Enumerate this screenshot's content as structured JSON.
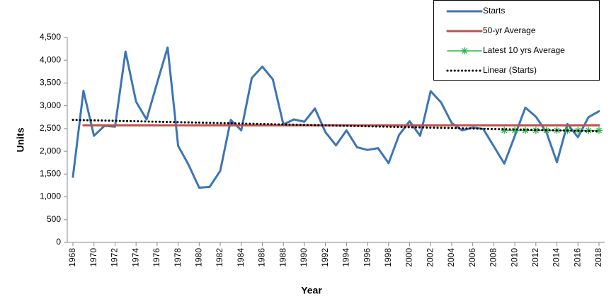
{
  "chart_data": {
    "type": "line",
    "x_label": "Year",
    "y_label": "Units",
    "x": [
      1968,
      1969,
      1970,
      1971,
      1972,
      1973,
      1974,
      1975,
      1976,
      1977,
      1978,
      1979,
      1980,
      1981,
      1982,
      1983,
      1984,
      1985,
      1986,
      1987,
      1988,
      1989,
      1990,
      1991,
      1992,
      1993,
      1994,
      1995,
      1996,
      1997,
      1998,
      1999,
      2000,
      2001,
      2002,
      2003,
      2004,
      2005,
      2006,
      2007,
      2008,
      2009,
      2010,
      2011,
      2012,
      2013,
      2014,
      2015,
      2016,
      2017,
      2018
    ],
    "xlim": [
      1968,
      2018
    ],
    "xticks": [
      1968,
      1970,
      1972,
      1974,
      1976,
      1978,
      1980,
      1982,
      1984,
      1986,
      1988,
      1990,
      1992,
      1994,
      1996,
      1998,
      2000,
      2002,
      2004,
      2006,
      2008,
      2010,
      2012,
      2014,
      2016,
      2018
    ],
    "ylim": [
      0,
      4500
    ],
    "yticks": [
      0,
      500,
      {
        "value": 1000,
        "label": "1,000"
      },
      {
        "value": 1500,
        "label": "1,500"
      },
      {
        "value": 2000,
        "label": "2,000"
      },
      {
        "value": 2500,
        "label": "2,500"
      },
      {
        "value": 3000,
        "label": "3,000"
      },
      {
        "value": 3500,
        "label": "3,500"
      },
      {
        "value": 4000,
        "label": "4,000"
      },
      {
        "value": 4500,
        "label": "4,500"
      }
    ],
    "legend": "top-right",
    "series": [
      {
        "name": "Starts",
        "color": "#3d75b5",
        "style": "solid",
        "width": 3,
        "values": [
          1440,
          3330,
          2340,
          2560,
          2540,
          4190,
          3090,
          2700,
          3500,
          4280,
          2120,
          1700,
          1200,
          1220,
          1570,
          2690,
          2460,
          3610,
          3860,
          3580,
          2590,
          2700,
          2650,
          2940,
          2420,
          2130,
          2460,
          2090,
          2030,
          2070,
          1740,
          2360,
          2660,
          2340,
          3320,
          3070,
          2620,
          2460,
          2520,
          2490,
          2110,
          1730,
          2340,
          2960,
          2760,
          2420,
          1760,
          2600,
          2310,
          2750,
          2880
        ]
      },
      {
        "name": "50-yr Average",
        "color": "#c0504d",
        "style": "solid",
        "width": 3,
        "values": [
          null,
          2570,
          2570,
          2570,
          2570,
          2570,
          2570,
          2570,
          2570,
          2570,
          2570,
          2570,
          2570,
          2570,
          2570,
          2570,
          2570,
          2570,
          2570,
          2570,
          2570,
          2570,
          2570,
          2570,
          2570,
          2570,
          2570,
          2570,
          2570,
          2570,
          2570,
          2570,
          2570,
          2570,
          2570,
          2570,
          2570,
          2570,
          2570,
          2570,
          2570,
          2570,
          2570,
          2570,
          2570,
          2570,
          2570,
          2570,
          2570,
          2570,
          2570
        ]
      },
      {
        "name": "Latest 10 yrs Average",
        "color": "#2db34a",
        "style": "solid",
        "width": 1.5,
        "marker": "star",
        "values": [
          null,
          null,
          null,
          null,
          null,
          null,
          null,
          null,
          null,
          null,
          null,
          null,
          null,
          null,
          null,
          null,
          null,
          null,
          null,
          null,
          null,
          null,
          null,
          null,
          null,
          null,
          null,
          null,
          null,
          null,
          null,
          null,
          null,
          null,
          null,
          null,
          null,
          null,
          null,
          null,
          null,
          2460,
          2460,
          2460,
          2460,
          2460,
          2460,
          2460,
          2460,
          2460,
          2460
        ]
      },
      {
        "name": "Linear (Starts)",
        "color": "#000000",
        "style": "dotted",
        "width": 3,
        "values": [
          2690,
          2685,
          2680,
          2675,
          2670,
          2665,
          2660,
          2655,
          2650,
          2645,
          2640,
          2635,
          2630,
          2625,
          2620,
          2615,
          2610,
          2605,
          2600,
          2595,
          2590,
          2585,
          2580,
          2575,
          2570,
          2565,
          2560,
          2555,
          2550,
          2545,
          2540,
          2535,
          2530,
          2525,
          2520,
          2515,
          2510,
          2505,
          2500,
          2495,
          2490,
          2485,
          2480,
          2475,
          2470,
          2465,
          2460,
          2455,
          2450,
          2445,
          2440
        ]
      }
    ]
  }
}
